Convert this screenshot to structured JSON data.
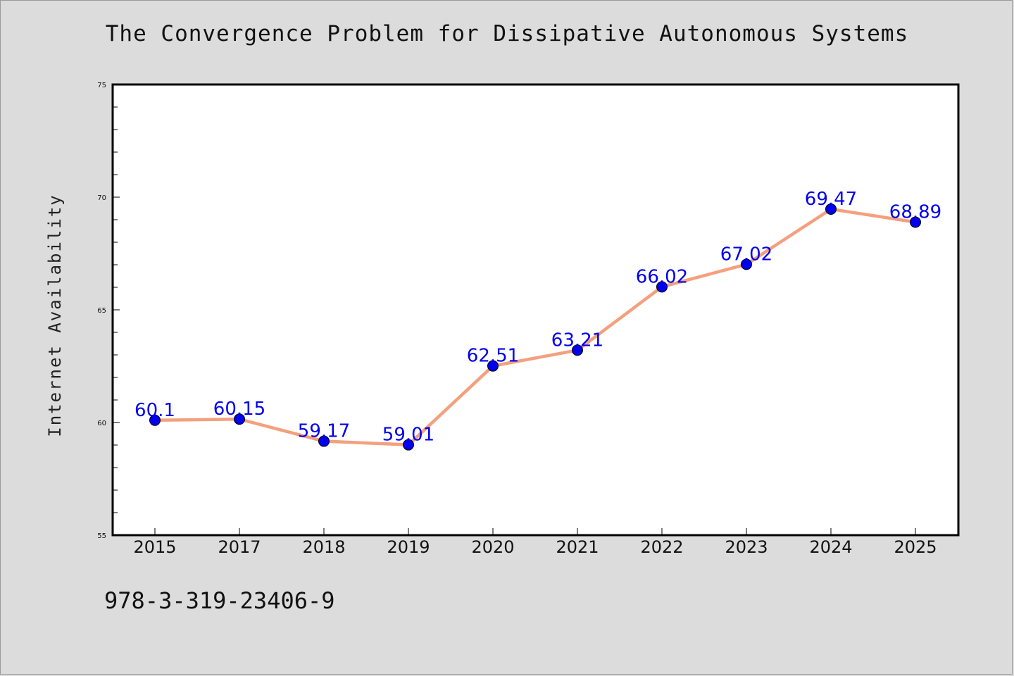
{
  "colors": {
    "background": "#dcdcdc",
    "plot_background": "#ffffff",
    "line": "#f4a07e",
    "marker": "#0000ee",
    "label": "#0000ee"
  },
  "chart_data": {
    "type": "line",
    "title": "The Convergence Problem for Dissipative Autonomous Systems",
    "xlabel": "",
    "ylabel": "Internet Availability",
    "categories": [
      "2015",
      "2017",
      "2018",
      "2019",
      "2020",
      "2021",
      "2022",
      "2023",
      "2024",
      "2025"
    ],
    "series": [
      {
        "values": [
          60.1,
          60.15,
          59.17,
          59.01,
          62.51,
          63.21,
          66.02,
          67.02,
          69.47,
          68.89
        ],
        "labels": [
          "60.1",
          "60.15",
          "59.17",
          "59.01",
          "62.51",
          "63.21",
          "66.02",
          "67.02",
          "69.47",
          "68.89"
        ]
      }
    ],
    "ylim": [
      55,
      75
    ],
    "yticks": [
      "55",
      "60",
      "65",
      "70",
      "75"
    ],
    "grid": false,
    "legend": "none"
  },
  "footer": {
    "isbn": "978-3-319-23406-9"
  }
}
